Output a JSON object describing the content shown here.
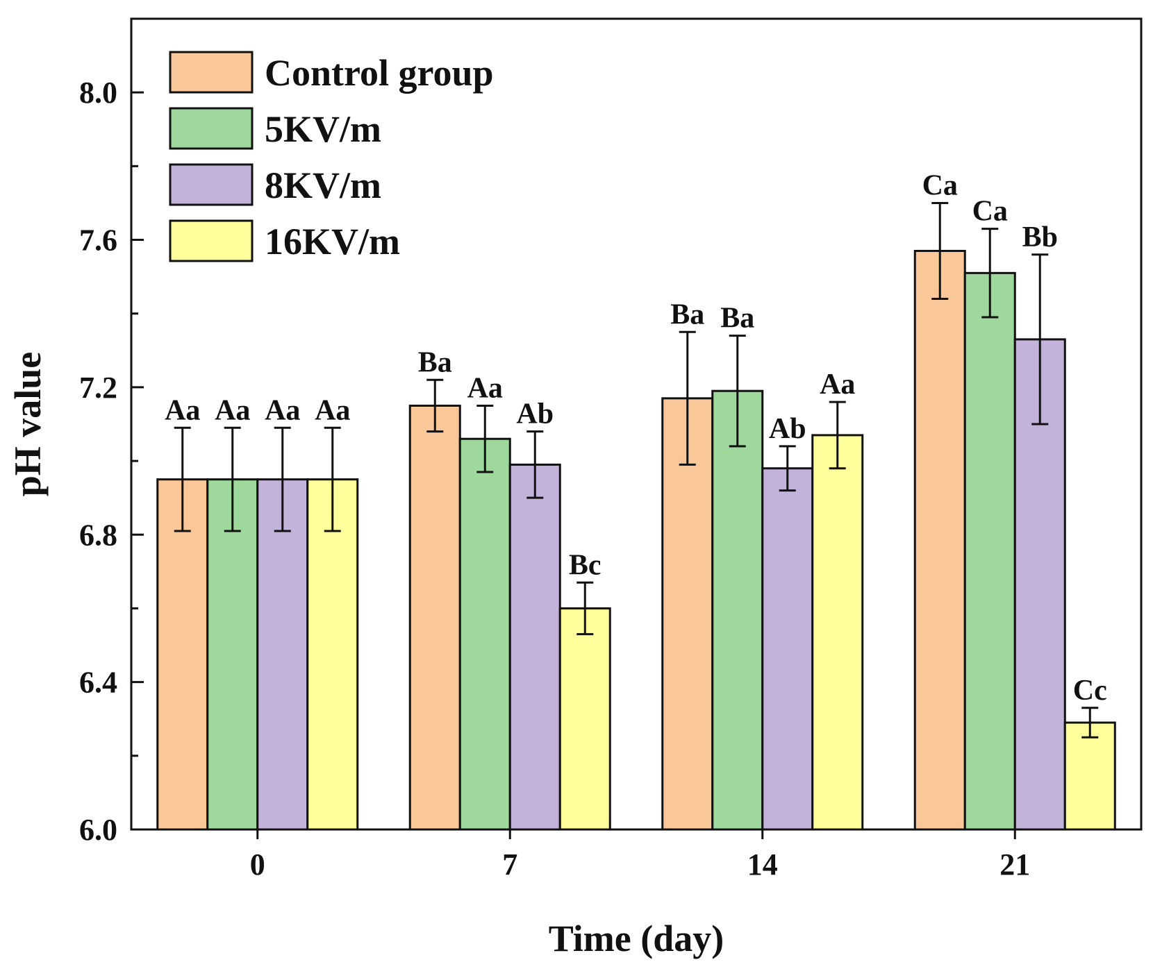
{
  "chart_data": {
    "type": "bar",
    "xlabel": "Time (day)",
    "ylabel": "pH value",
    "ylim": [
      6.0,
      8.2
    ],
    "yticks": [
      6.0,
      6.4,
      6.8,
      7.2,
      7.6,
      8.0
    ],
    "ytick_labels": [
      "6.0",
      "6.4",
      "6.8",
      "7.2",
      "7.6",
      "8.0"
    ],
    "categories": [
      "0",
      "7",
      "14",
      "21"
    ],
    "legend_position": "top-left",
    "series": [
      {
        "name": "Control group",
        "color": "#FAC898",
        "values": [
          6.95,
          7.15,
          7.17,
          7.57
        ],
        "errors": [
          0.14,
          0.07,
          0.18,
          0.13
        ],
        "labels": [
          "Aa",
          "Ba",
          "Ba",
          "Ca"
        ]
      },
      {
        "name": "5KV/m",
        "color": "#9ED89C",
        "values": [
          6.95,
          7.06,
          7.19,
          7.51
        ],
        "errors": [
          0.14,
          0.09,
          0.15,
          0.12
        ],
        "labels": [
          "Aa",
          "Aa",
          "Ba",
          "Ca"
        ]
      },
      {
        "name": "8KV/m",
        "color": "#C3B3DA",
        "values": [
          6.95,
          6.99,
          6.98,
          7.33
        ],
        "errors": [
          0.14,
          0.09,
          0.06,
          0.23
        ],
        "labels": [
          "Aa",
          "Ab",
          "Ab",
          "Bb"
        ]
      },
      {
        "name": "16KV/m",
        "color": "#FFFF9C",
        "values": [
          6.95,
          6.6,
          7.07,
          6.29
        ],
        "errors": [
          0.14,
          0.07,
          0.09,
          0.04
        ],
        "labels": [
          "Aa",
          "Bc",
          "Aa",
          "Cc"
        ]
      }
    ]
  }
}
